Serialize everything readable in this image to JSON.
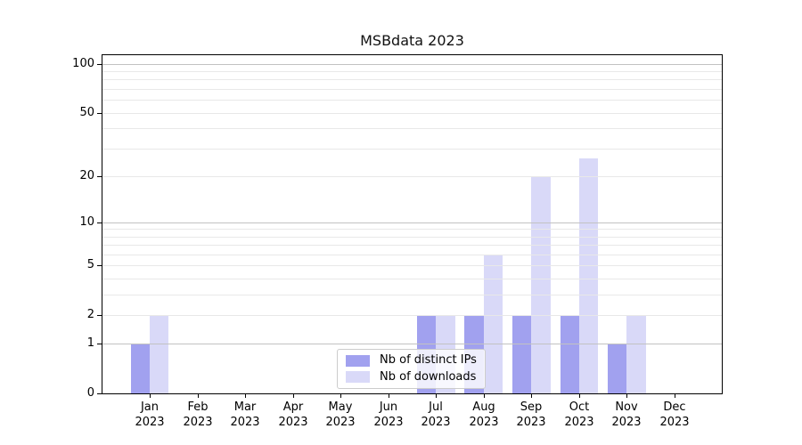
{
  "chart_data": {
    "type": "bar",
    "title": "MSBdata 2023",
    "categories": [
      {
        "month": "Jan",
        "year": "2023"
      },
      {
        "month": "Feb",
        "year": "2023"
      },
      {
        "month": "Mar",
        "year": "2023"
      },
      {
        "month": "Apr",
        "year": "2023"
      },
      {
        "month": "May",
        "year": "2023"
      },
      {
        "month": "Jun",
        "year": "2023"
      },
      {
        "month": "Jul",
        "year": "2023"
      },
      {
        "month": "Aug",
        "year": "2023"
      },
      {
        "month": "Sep",
        "year": "2023"
      },
      {
        "month": "Oct",
        "year": "2023"
      },
      {
        "month": "Nov",
        "year": "2023"
      },
      {
        "month": "Dec",
        "year": "2023"
      }
    ],
    "series": [
      {
        "key": "distinct-ips",
        "name": "Nb of distinct IPs",
        "color": "#a1a1ef",
        "values": [
          1,
          0,
          0,
          0,
          0,
          0,
          2,
          2,
          2,
          2,
          1,
          0
        ]
      },
      {
        "key": "downloads",
        "name": "Nb of downloads",
        "color": "#d9d9f8",
        "values": [
          2,
          0,
          0,
          0,
          0,
          0,
          2,
          6,
          20,
          26,
          2,
          0
        ]
      }
    ],
    "yscale": "log1p",
    "ylim": [
      0,
      113
    ],
    "yticks_labeled": [
      0,
      1,
      2,
      5,
      10,
      20,
      50,
      100
    ],
    "grid_decade_lines": [
      1,
      10,
      100
    ],
    "grid_sub_lines": [
      2,
      3,
      4,
      5,
      6,
      7,
      8,
      9,
      20,
      30,
      40,
      50,
      60,
      70,
      80,
      90
    ],
    "grid": "horizontal",
    "legend_position": "lower-center"
  },
  "colors": {
    "spine": "#000000",
    "grid_decade": "#c2c2c2",
    "grid_sub": "#e8e8e8",
    "legend_border": "#cccccc",
    "background": "#ffffff"
  }
}
